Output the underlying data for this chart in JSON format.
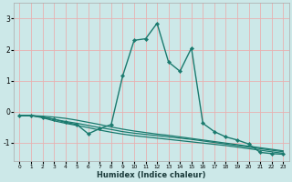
{
  "xlabel": "Humidex (Indice chaleur)",
  "background_color": "#cce8e8",
  "grid_color": "#e8b0b0",
  "line_color": "#1a7a6e",
  "x_ticks": [
    0,
    1,
    2,
    3,
    4,
    5,
    6,
    7,
    8,
    9,
    10,
    11,
    12,
    13,
    14,
    15,
    16,
    17,
    18,
    19,
    20,
    21,
    22,
    23
  ],
  "y_ticks": [
    -1,
    0,
    1,
    2,
    3
  ],
  "xlim": [
    -0.5,
    23.5
  ],
  "ylim": [
    -1.6,
    3.5
  ],
  "series": [
    {
      "x": [
        0,
        1,
        2,
        3,
        4,
        5,
        6,
        7,
        8,
        9,
        10,
        11,
        12,
        13,
        14,
        15,
        16,
        17,
        18,
        19,
        20,
        21,
        22,
        23
      ],
      "y": [
        -0.13,
        -0.13,
        -0.15,
        -0.18,
        -0.22,
        -0.28,
        -0.35,
        -0.42,
        -0.5,
        -0.57,
        -0.63,
        -0.68,
        -0.73,
        -0.77,
        -0.82,
        -0.87,
        -0.92,
        -0.97,
        -1.02,
        -1.07,
        -1.12,
        -1.17,
        -1.22,
        -1.27
      ],
      "has_markers": false,
      "lw": 0.9
    },
    {
      "x": [
        0,
        1,
        2,
        3,
        4,
        5,
        6,
        7,
        8,
        9,
        10,
        11,
        12,
        13,
        14,
        15,
        16,
        17,
        18,
        19,
        20,
        21,
        22,
        23
      ],
      "y": [
        -0.13,
        -0.13,
        -0.18,
        -0.25,
        -0.32,
        -0.38,
        -0.45,
        -0.52,
        -0.58,
        -0.65,
        -0.7,
        -0.74,
        -0.78,
        -0.82,
        -0.86,
        -0.9,
        -0.95,
        -1.0,
        -1.05,
        -1.1,
        -1.15,
        -1.2,
        -1.25,
        -1.3
      ],
      "has_markers": false,
      "lw": 0.9
    },
    {
      "x": [
        0,
        1,
        2,
        3,
        4,
        5,
        6,
        7,
        8,
        9,
        10,
        11,
        12,
        13,
        14,
        15,
        16,
        17,
        18,
        19,
        20,
        21,
        22,
        23
      ],
      "y": [
        -0.13,
        -0.13,
        -0.2,
        -0.3,
        -0.38,
        -0.45,
        -0.52,
        -0.6,
        -0.67,
        -0.73,
        -0.78,
        -0.82,
        -0.86,
        -0.9,
        -0.94,
        -0.98,
        -1.02,
        -1.06,
        -1.1,
        -1.15,
        -1.2,
        -1.25,
        -1.3,
        -1.35
      ],
      "has_markers": false,
      "lw": 0.9
    },
    {
      "x": [
        0,
        1,
        2,
        3,
        4,
        5,
        6,
        7,
        8,
        9,
        10,
        11,
        12,
        13,
        14,
        15,
        16,
        17,
        18,
        19,
        20,
        21,
        22,
        23
      ],
      "y": [
        -0.13,
        -0.13,
        -0.18,
        -0.25,
        -0.35,
        -0.42,
        -0.72,
        -0.55,
        -0.42,
        1.15,
        2.3,
        2.35,
        2.85,
        1.6,
        1.3,
        2.05,
        -0.38,
        -0.65,
        -0.82,
        -0.92,
        -1.05,
        -1.32,
        -1.36,
        -1.38
      ],
      "has_markers": true,
      "lw": 1.0
    }
  ]
}
